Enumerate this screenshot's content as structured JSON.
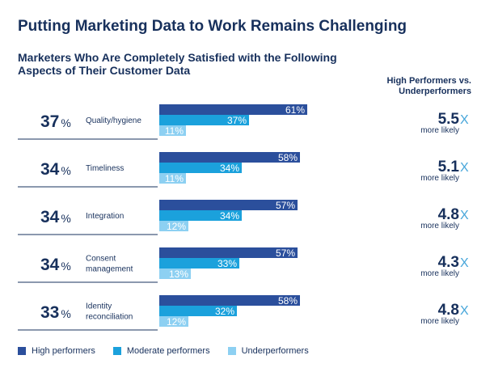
{
  "header": {
    "title": "Putting Marketing Data to Work Remains Challenging",
    "subtitle": "Marketers Who Are Completely Satisfied with the Following Aspects of Their Customer Data",
    "column_header": "High Performers vs. Underperformers"
  },
  "colors": {
    "high": "#2b4f9c",
    "moderate": "#1ba1dc",
    "under": "#8dd0f2",
    "text": "#17305c",
    "ratio_suffix": "#47a6da",
    "separator": "#17305c"
  },
  "chart_data": {
    "type": "bar",
    "title": "Marketers Who Are Completely Satisfied with the Following Aspects of Their Customer Data",
    "categories": [
      "Quality/hygiene",
      "Timeliness",
      "Integration",
      "Consent management",
      "Identity reconciliation"
    ],
    "category_lines": [
      [
        "Quality/hygiene"
      ],
      [
        "Timeliness"
      ],
      [
        "Integration"
      ],
      [
        "Consent",
        "management"
      ],
      [
        "Identity",
        "reconciliation"
      ]
    ],
    "overall": [
      37,
      34,
      34,
      34,
      33
    ],
    "series": [
      {
        "name": "High performers",
        "values": [
          61,
          58,
          57,
          57,
          58
        ]
      },
      {
        "name": "Moderate performers",
        "values": [
          37,
          34,
          34,
          33,
          32
        ]
      },
      {
        "name": "Underperformers",
        "values": [
          11,
          11,
          12,
          13,
          12
        ]
      }
    ],
    "ratio": {
      "header": "High Performers vs. Underperformers",
      "values": [
        "5.5",
        "5.1",
        "4.8",
        "4.3",
        "4.8"
      ],
      "suffix": "X",
      "caption": "more likely"
    },
    "value_suffix": "%",
    "xlim": [
      0,
      100
    ],
    "legend_position": "bottom-left",
    "grid": false
  },
  "legend": [
    {
      "label": "High performers",
      "color": "#2b4f9c"
    },
    {
      "label": "Moderate performers",
      "color": "#1ba1dc"
    },
    {
      "label": "Underperformers",
      "color": "#8dd0f2"
    }
  ]
}
